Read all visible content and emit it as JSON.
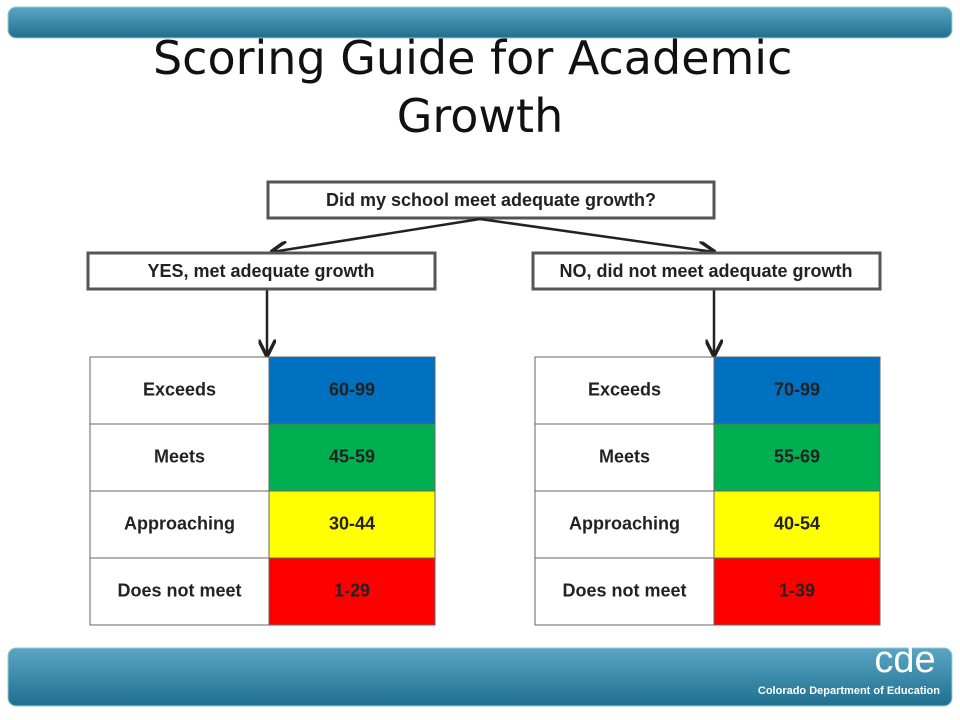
{
  "title": "Scoring Guide for Academic Growth",
  "question": "Did my school meet adequate growth?",
  "branches": [
    {
      "label": "YES, met adequate growth",
      "rows": [
        {
          "rating": "Exceeds",
          "range": "60-99"
        },
        {
          "rating": "Meets",
          "range": "45-59"
        },
        {
          "rating": "Approaching",
          "range": "30-44"
        },
        {
          "rating": "Does not meet",
          "range": "1-29"
        }
      ]
    },
    {
      "label": "NO, did not meet adequate growth",
      "rows": [
        {
          "rating": "Exceeds",
          "range": "70-99"
        },
        {
          "rating": "Meets",
          "range": "55-69"
        },
        {
          "rating": "Approaching",
          "range": "40-54"
        },
        {
          "rating": "Does not meet",
          "range": "1-39"
        }
      ]
    }
  ],
  "footer": {
    "logo": "cde",
    "organization": "Colorado Department of Education"
  }
}
